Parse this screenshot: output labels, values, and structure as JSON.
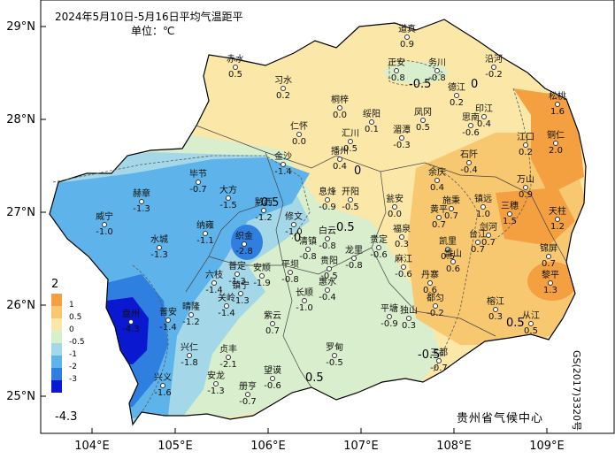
{
  "map": {
    "title": "2024年5月10日-5月16日平均气温距平",
    "unit": "单位：℃",
    "credit": "贵州省气候中心",
    "approval": "GS(2017)3320号",
    "lat_labels": [
      "29°N",
      "28°N",
      "27°N",
      "26°N",
      "25°N"
    ],
    "lon_labels": [
      "104°E",
      "105°E",
      "106°E",
      "107°E",
      "108°E",
      "109°E"
    ],
    "contour_labels": [
      "-0.5",
      "0",
      "0",
      "0.5",
      "-0.5",
      "0.5",
      "0",
      "0.5",
      "-0.5"
    ]
  },
  "legend": {
    "max": "2",
    "min": "-4.3",
    "levels": [
      {
        "label": "1",
        "color": "#f4a040"
      },
      {
        "label": "0.5",
        "color": "#f8c870"
      },
      {
        "label": "0",
        "color": "#fbe7a8"
      },
      {
        "label": "-0.5",
        "color": "#d8eecc"
      },
      {
        "label": "-1",
        "color": "#a4d8e8"
      },
      {
        "label": "-2",
        "color": "#5eb4ea"
      },
      {
        "label": "-3",
        "color": "#2e7fe0"
      },
      {
        "label": "",
        "color": "#0a18d0"
      }
    ]
  },
  "stations": [
    {
      "name": "道真",
      "value": "0.9"
    },
    {
      "name": "正安",
      "value": "-0.8"
    },
    {
      "name": "务川",
      "value": "-0.8"
    },
    {
      "name": "沿河",
      "value": "-0.2"
    },
    {
      "name": "赤水",
      "value": "0.5"
    },
    {
      "name": "习水",
      "value": "0.2"
    },
    {
      "name": "桐梓",
      "value": "0.0"
    },
    {
      "name": "绥阳",
      "value": "0.1"
    },
    {
      "name": "凤冈",
      "value": "0.5"
    },
    {
      "name": "德江",
      "value": "0.2"
    },
    {
      "name": "印江",
      "value": "0.4"
    },
    {
      "name": "思南",
      "value": "-0.6"
    },
    {
      "name": "松桃",
      "value": "1.6"
    },
    {
      "name": "仁怀",
      "value": "0.0"
    },
    {
      "name": "湄潭",
      "value": "-0.3"
    },
    {
      "name": "汇川",
      "value": "0.5"
    },
    {
      "name": "播州",
      "value": "0.4"
    },
    {
      "name": "江口",
      "value": "0.2"
    },
    {
      "name": "铜仁",
      "value": "2.0"
    },
    {
      "name": "石阡",
      "value": "-0.4"
    },
    {
      "name": "金沙",
      "value": "-1.4"
    },
    {
      "name": "余庆",
      "value": "0.4"
    },
    {
      "name": "毕节",
      "value": "-0.7"
    },
    {
      "name": "大方",
      "value": "-1.5"
    },
    {
      "name": "赫章",
      "value": "-1.3"
    },
    {
      "name": "黔西",
      "value": "-1.2"
    },
    {
      "name": "息烽",
      "value": "-0.9"
    },
    {
      "name": "开阳",
      "value": "-0.5"
    },
    {
      "name": "瓮安",
      "value": "0.0"
    },
    {
      "name": "施秉",
      "value": "0.7"
    },
    {
      "name": "镇远",
      "value": "1.0"
    },
    {
      "name": "三穗",
      "value": "1.5"
    },
    {
      "name": "天柱",
      "value": "1.2"
    },
    {
      "name": "万山",
      "value": "0.9"
    },
    {
      "name": "威宁",
      "value": "-1.0"
    },
    {
      "name": "纳雍",
      "value": "-1.1"
    },
    {
      "name": "织金",
      "value": "-2.8"
    },
    {
      "name": "修文",
      "value": "-1.0"
    },
    {
      "name": "清镇",
      "value": "-0.8"
    },
    {
      "name": "白云",
      "value": "-0.8"
    },
    {
      "name": "贵阳",
      "value": "-0.5"
    },
    {
      "name": "龙里",
      "value": "-0.8"
    },
    {
      "name": "贵定",
      "value": "-0.6"
    },
    {
      "name": "福泉",
      "value": "0.3"
    },
    {
      "name": "麻江",
      "value": "-0.6"
    },
    {
      "name": "凯里",
      "value": "0.5"
    },
    {
      "name": "黄平",
      "value": "0.7"
    },
    {
      "name": "台江",
      "value": "0.7"
    },
    {
      "name": "剑河",
      "value": "0.7"
    },
    {
      "name": "锦屏",
      "value": "0.7"
    },
    {
      "name": "水城",
      "value": "-1.3"
    },
    {
      "name": "六枝",
      "value": "-1.4"
    },
    {
      "name": "普定",
      "value": "-1.3"
    },
    {
      "name": "安顺",
      "value": "-1.9"
    },
    {
      "name": "平坝",
      "value": "-0.8"
    },
    {
      "name": "长顺",
      "value": "-1.0"
    },
    {
      "name": "惠水",
      "value": "-0.4"
    },
    {
      "name": "丹寨",
      "value": "0.6"
    },
    {
      "name": "雷山",
      "value": "0.6"
    },
    {
      "name": "都匀",
      "value": "-0.2"
    },
    {
      "name": "黎平",
      "value": "1.3"
    },
    {
      "name": "榕江",
      "value": "0.3"
    },
    {
      "name": "从江",
      "value": "0.5"
    },
    {
      "name": "盘州",
      "value": "-4.3"
    },
    {
      "name": "普安",
      "value": "-1.4"
    },
    {
      "name": "晴隆",
      "value": "-1.2"
    },
    {
      "name": "关岭",
      "value": "-1.4"
    },
    {
      "name": "镇宁",
      "value": "-1.3"
    },
    {
      "name": "紫云",
      "value": "0.7"
    },
    {
      "name": "罗甸",
      "value": "-0.5"
    },
    {
      "name": "平塘",
      "value": "-0.9"
    },
    {
      "name": "独山",
      "value": "0.3"
    },
    {
      "name": "三都",
      "value": "-0.7"
    },
    {
      "name": "兴仁",
      "value": "-1.8"
    },
    {
      "name": "贞丰",
      "value": "-2.1"
    },
    {
      "name": "兴义",
      "value": "-1.6"
    },
    {
      "name": "安龙",
      "value": "-1.3"
    },
    {
      "name": "册亨",
      "value": "-0.7"
    },
    {
      "name": "望谟",
      "value": "-0.6"
    }
  ]
}
